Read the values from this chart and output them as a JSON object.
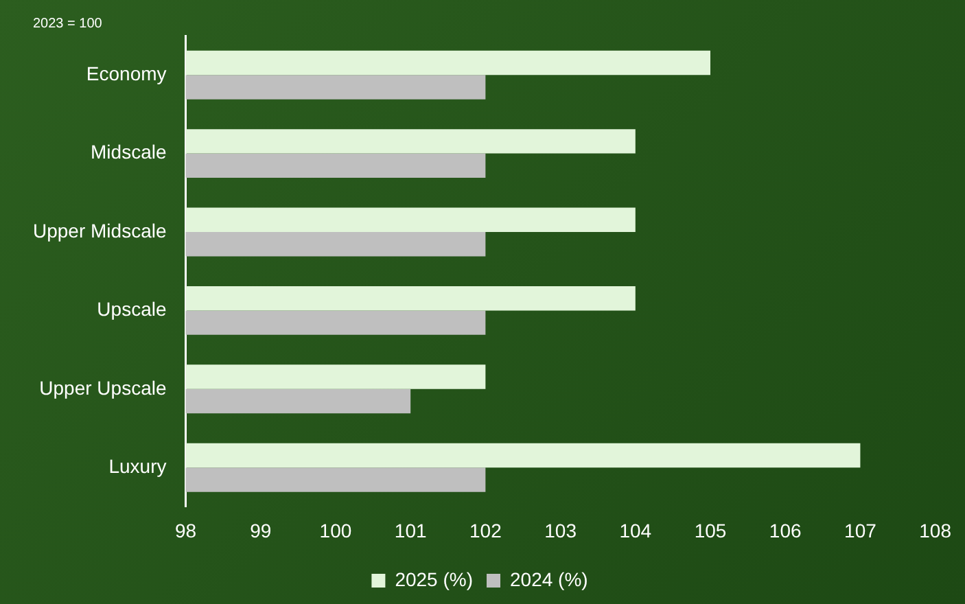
{
  "chart_data": {
    "type": "bar",
    "orientation": "horizontal",
    "categories": [
      "Economy",
      "Midscale",
      "Upper Midscale",
      "Upscale",
      "Upper Upscale",
      "Luxury"
    ],
    "series": [
      {
        "name": "2025 (%)",
        "color": "#e2f5da",
        "values": [
          105,
          104,
          104,
          104,
          102,
          107
        ]
      },
      {
        "name": "2024 (%)",
        "color": "#bfbfbf",
        "values": [
          102,
          102,
          102,
          102,
          101,
          102
        ]
      }
    ],
    "xlim": [
      98,
      108
    ],
    "xticks": [
      98,
      99,
      100,
      101,
      102,
      103,
      104,
      105,
      106,
      107,
      108
    ],
    "grid": false,
    "legend": "bottom",
    "annotations": [
      "2023 = 100"
    ]
  }
}
